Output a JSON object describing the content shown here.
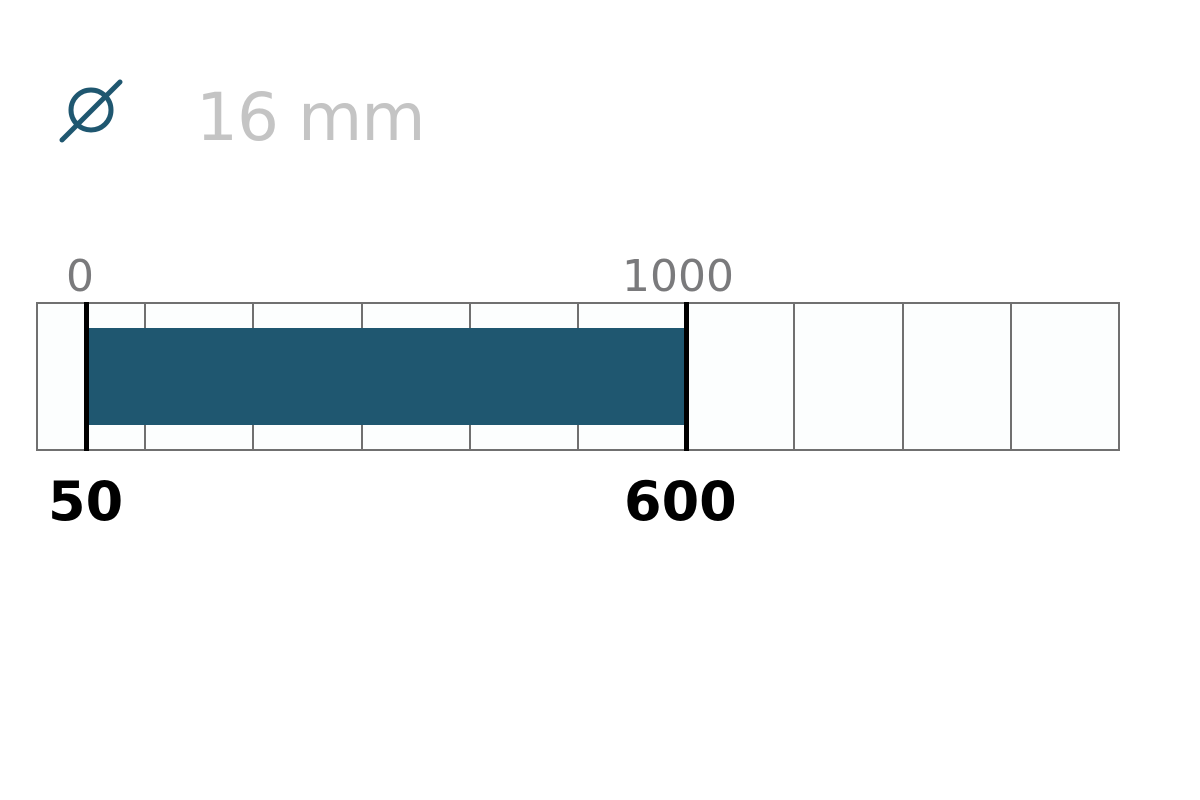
{
  "diameter": {
    "icon": "diameter-icon",
    "value": "16 mm",
    "icon_color": "#1f5770"
  },
  "scale": {
    "min_label": "0",
    "max_label": "1000"
  },
  "range": {
    "min": "50",
    "max": "600",
    "bar_color": "#1f5770"
  }
}
